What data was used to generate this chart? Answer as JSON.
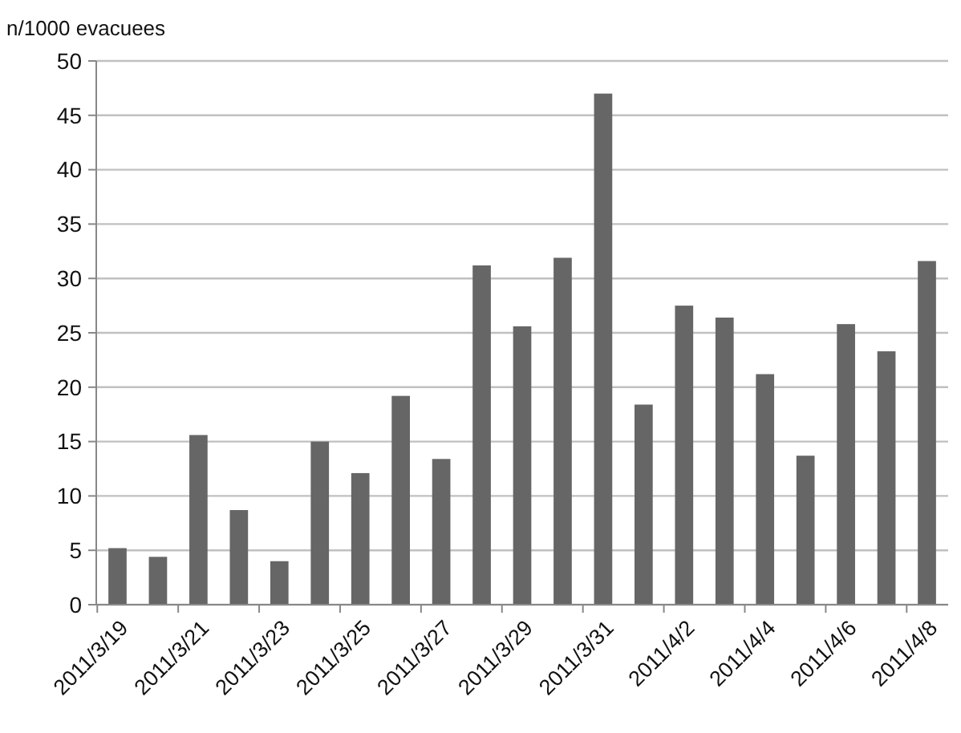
{
  "chart_data": {
    "type": "bar",
    "ylabel": "n/1000 evacuees",
    "categories": [
      "2011/3/19",
      null,
      "2011/3/21",
      null,
      "2011/3/23",
      null,
      "2011/3/25",
      null,
      "2011/3/27",
      null,
      "2011/3/29",
      null,
      "2011/3/31",
      null,
      "2011/4/2",
      null,
      "2011/4/4",
      null,
      "2011/4/6",
      null,
      "2011/4/8"
    ],
    "values": [
      5.2,
      4.4,
      15.6,
      8.7,
      4.0,
      15.0,
      12.1,
      19.2,
      13.4,
      31.2,
      25.6,
      31.9,
      47.0,
      18.4,
      27.5,
      26.4,
      21.2,
      13.7,
      25.8,
      23.3,
      31.6
    ],
    "color": "#666666",
    "ylim": [
      0,
      50
    ],
    "yticks": [
      0,
      5,
      10,
      15,
      20,
      25,
      30,
      35,
      40,
      45,
      50
    ],
    "grid": "y"
  }
}
